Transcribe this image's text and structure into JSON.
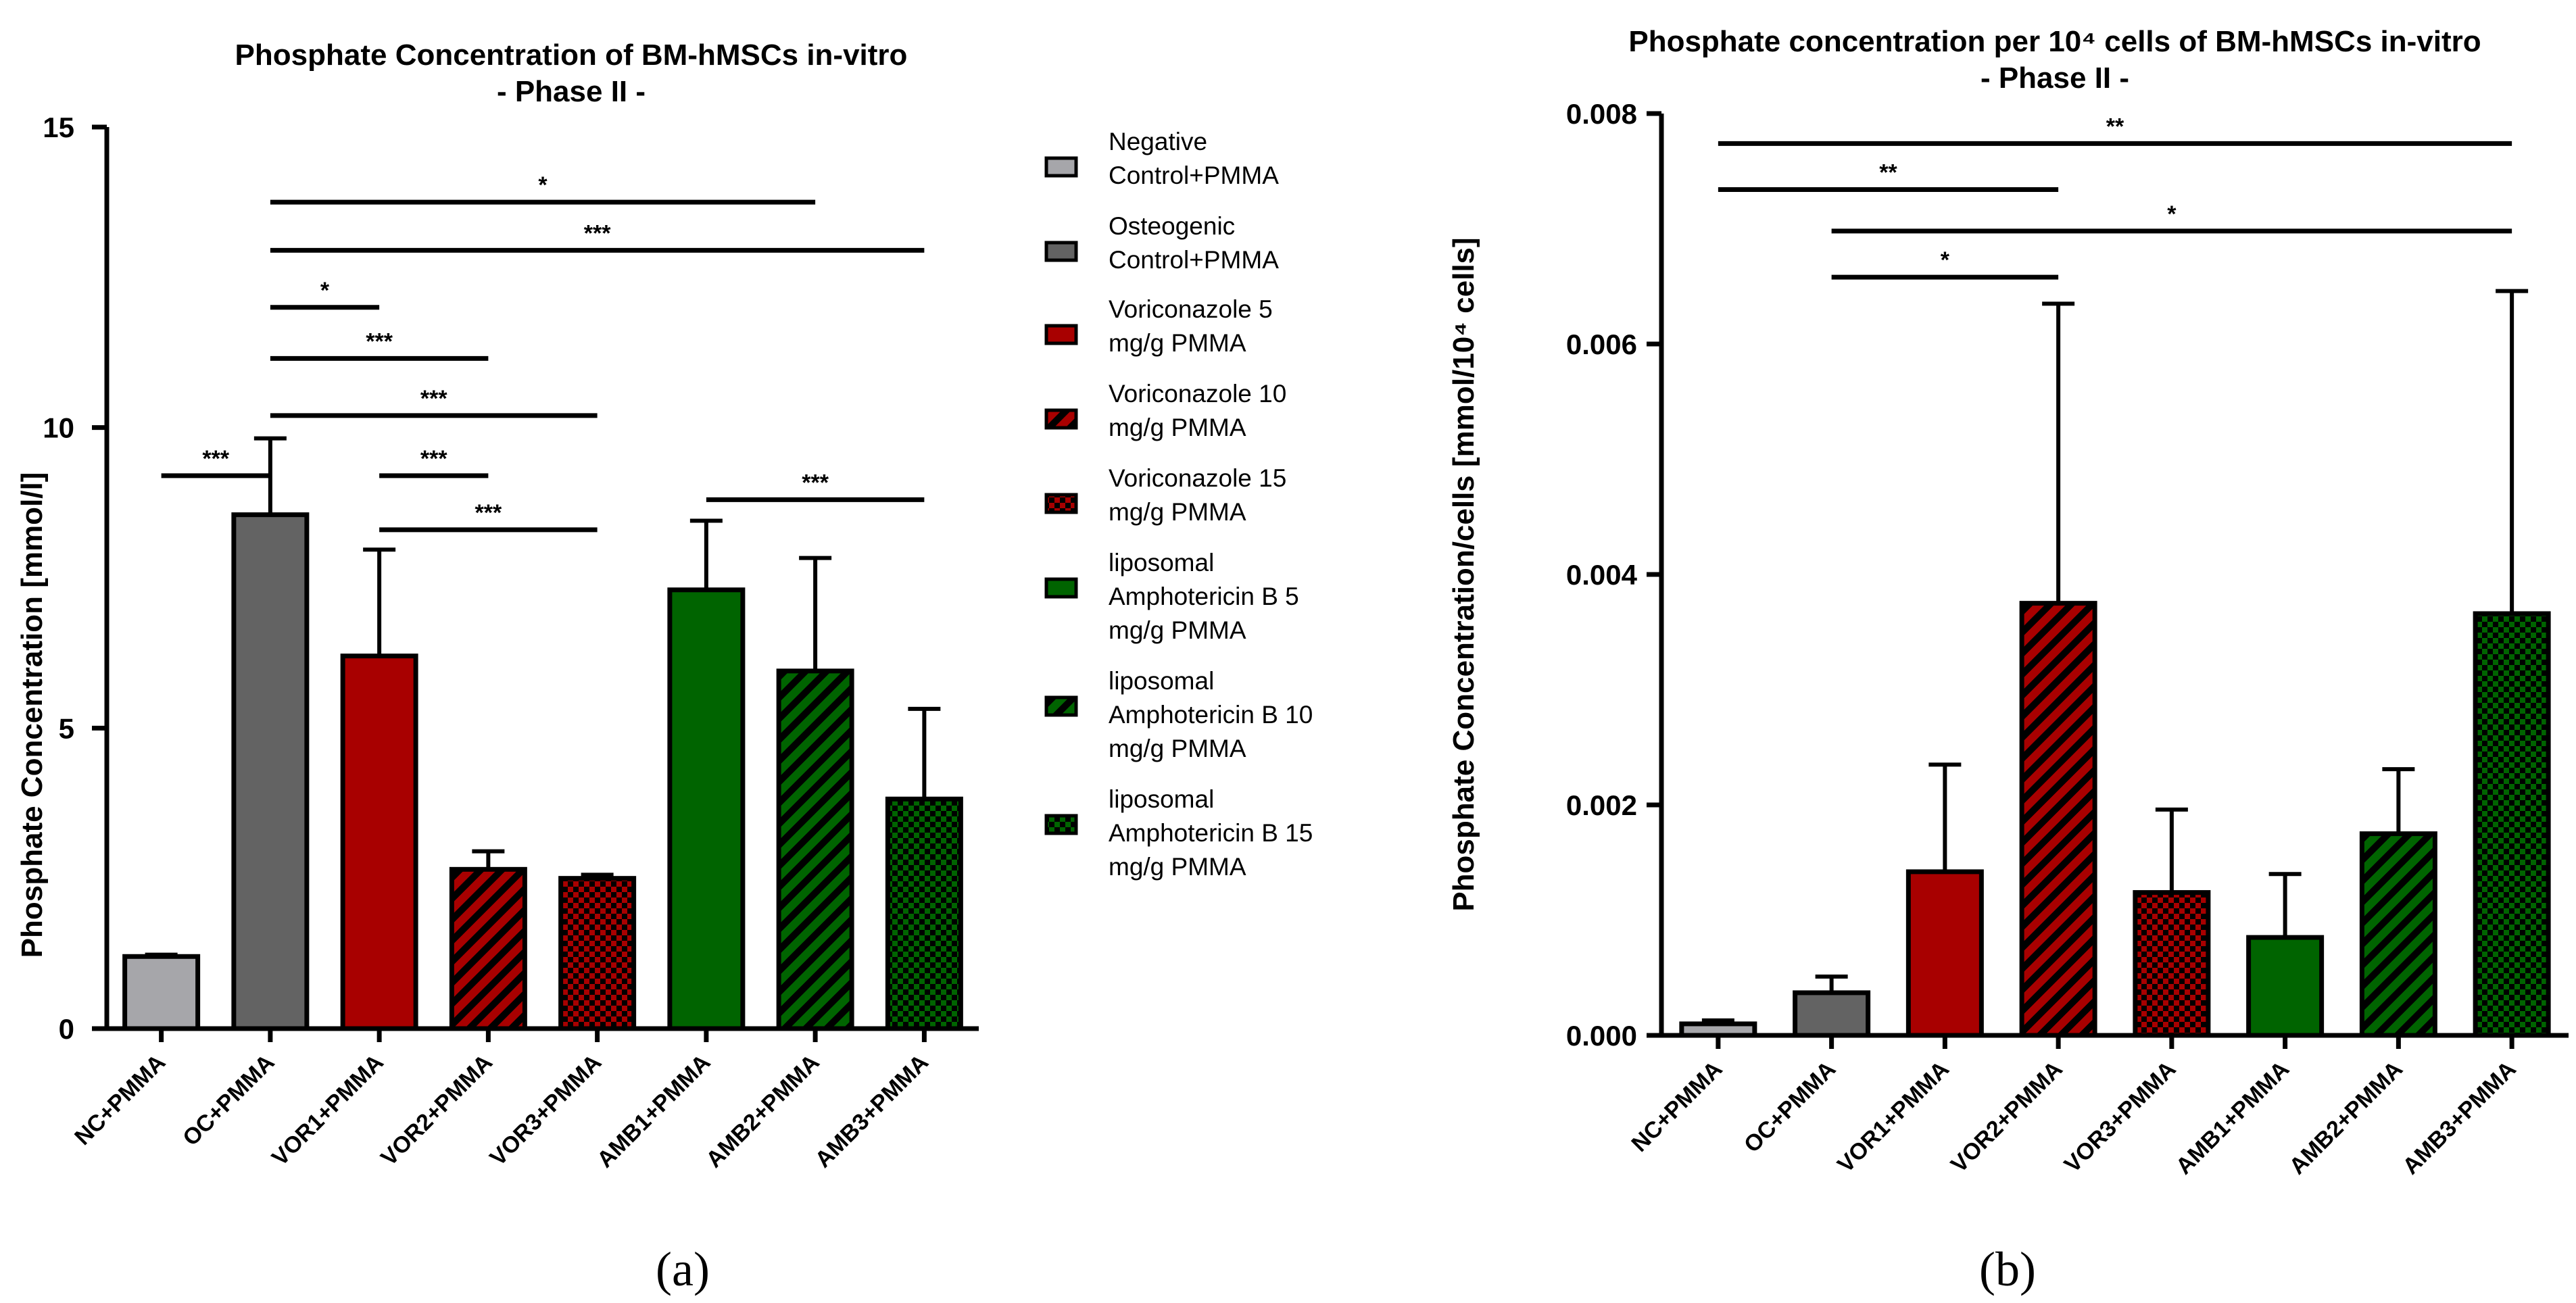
{
  "colors": {
    "nc": "#a6a6aa",
    "oc": "#636363",
    "vor": "#a80000",
    "amb": "#006400",
    "stroke": "#000000"
  },
  "chart_data": [
    {
      "id": "a",
      "type": "bar",
      "panel_label": "(a)",
      "title": "Phosphate Concentration of BM-hMSCs in-vitro",
      "subtitle": "- Phase II -",
      "xlabel": "",
      "ylabel": "Phosphate Concentration [mmol/l]",
      "ylim": [
        0,
        15
      ],
      "yticks": [
        0,
        5,
        10,
        15
      ],
      "ytick_labels": [
        "0",
        "5",
        "10",
        "15"
      ],
      "categories": [
        "NC+PMMA",
        "OC+PMMA",
        "VOR1+PMMA",
        "VOR2+PMMA",
        "VOR3+PMMA",
        "AMB1+PMMA",
        "AMB2+PMMA",
        "AMB3+PMMA"
      ],
      "values": [
        1.2,
        8.55,
        6.2,
        2.65,
        2.5,
        7.3,
        5.95,
        3.82
      ],
      "errors": [
        0.03,
        1.27,
        1.77,
        0.3,
        0.06,
        1.15,
        1.88,
        1.5
      ],
      "fills": [
        "solid-nc",
        "solid-oc",
        "solid-vor",
        "diag-vor",
        "check-vor",
        "solid-amb",
        "diag-amb",
        "check-amb"
      ],
      "significance": [
        {
          "from": 0,
          "to": 1,
          "y": 9.2,
          "label": "***"
        },
        {
          "from": 1,
          "to": 6,
          "y": 13.75,
          "label": "*"
        },
        {
          "from": 1,
          "to": 7,
          "y": 12.95,
          "label": "***"
        },
        {
          "from": 1,
          "to": 2,
          "y": 12.0,
          "label": "*"
        },
        {
          "from": 1,
          "to": 3,
          "y": 11.15,
          "label": "***"
        },
        {
          "from": 1,
          "to": 4,
          "y": 10.2,
          "label": "***"
        },
        {
          "from": 2,
          "to": 3,
          "y": 9.2,
          "label": "***"
        },
        {
          "from": 2,
          "to": 4,
          "y": 8.3,
          "label": "***"
        },
        {
          "from": 5,
          "to": 7,
          "y": 8.8,
          "label": "***"
        }
      ],
      "legend": [
        {
          "lines": [
            "Negative",
            "Control+PMMA"
          ],
          "fill": "solid-nc"
        },
        {
          "lines": [
            "Osteogenic",
            "Control+PMMA"
          ],
          "fill": "solid-oc"
        },
        {
          "lines": [
            "Voriconazole 5",
            "mg/g PMMA"
          ],
          "fill": "solid-vor"
        },
        {
          "lines": [
            "Voriconazole 10",
            "mg/g PMMA"
          ],
          "fill": "diag-vor"
        },
        {
          "lines": [
            "Voriconazole 15",
            "mg/g PMMA"
          ],
          "fill": "check-vor"
        },
        {
          "lines": [
            "liposomal",
            "Amphotericin B 5",
            "mg/g PMMA"
          ],
          "fill": "solid-amb"
        },
        {
          "lines": [
            "liposomal",
            "Amphotericin B 10",
            "mg/g PMMA"
          ],
          "fill": "diag-amb"
        },
        {
          "lines": [
            "liposomal",
            "Amphotericin B 15",
            "mg/g PMMA"
          ],
          "fill": "check-amb"
        }
      ]
    },
    {
      "id": "b",
      "type": "bar",
      "panel_label": "(b)",
      "title": "Phosphate concentration per 10⁴ cells of BM-hMSCs in-vitro",
      "subtitle": "- Phase II -",
      "xlabel": "",
      "ylabel": "Phosphate Concentration/cells [mmol/10⁴ cells]",
      "ylim": [
        0,
        0.008
      ],
      "yticks": [
        0,
        0.002,
        0.004,
        0.006,
        0.008
      ],
      "ytick_labels": [
        "0.000",
        "0.002",
        "0.004",
        "0.006",
        "0.008"
      ],
      "categories": [
        "NC+PMMA",
        "OC+PMMA",
        "VOR1+PMMA",
        "VOR2+PMMA",
        "VOR3+PMMA",
        "AMB1+PMMA",
        "AMB2+PMMA",
        "AMB3+PMMA"
      ],
      "values": [
        0.0001,
        0.00037,
        0.00142,
        0.00375,
        0.00124,
        0.00085,
        0.00175,
        0.00366
      ],
      "errors": [
        3e-05,
        0.00014,
        0.00093,
        0.0026,
        0.00072,
        0.00055,
        0.00056,
        0.0028
      ],
      "fills": [
        "solid-nc",
        "solid-oc",
        "solid-vor",
        "diag-vor",
        "check-vor",
        "solid-amb",
        "diag-amb",
        "check-amb"
      ],
      "significance": [
        {
          "from": 0,
          "to": 7,
          "y": 0.00774,
          "label": "**"
        },
        {
          "from": 0,
          "to": 3,
          "y": 0.00734,
          "label": "**"
        },
        {
          "from": 1,
          "to": 7,
          "y": 0.00698,
          "label": "*"
        },
        {
          "from": 1,
          "to": 3,
          "y": 0.00658,
          "label": "*"
        }
      ]
    }
  ]
}
